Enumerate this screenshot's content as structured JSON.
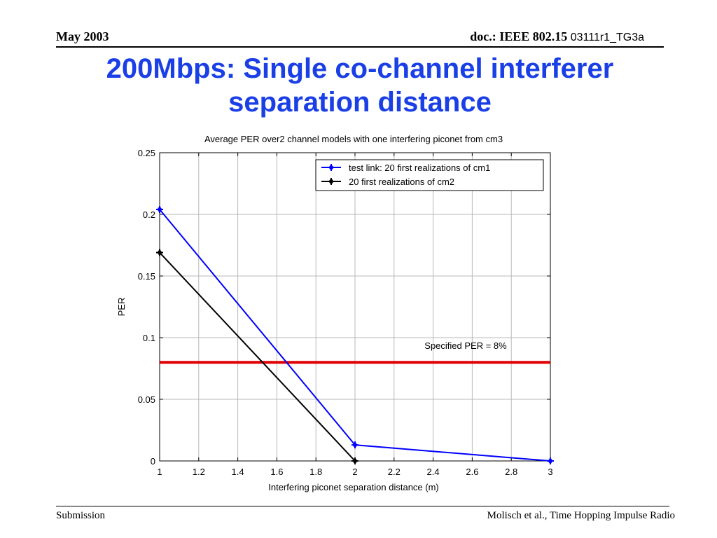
{
  "header": {
    "date": "May 2003",
    "doc_label": "doc.: IEEE 802.15",
    "doc_number": "03111r1_TG3a"
  },
  "slide": {
    "title_line1": "200Mbps: Single co-channel interferer",
    "title_line2": "separation distance"
  },
  "footer": {
    "left": "Submission",
    "right": "Molisch et al., Time  Hopping Impulse Radio"
  },
  "colors": {
    "title": "#1a3fe6",
    "series_blue": "#0000ff",
    "series_black": "#000000",
    "threshold": "#e00000"
  },
  "chart_data": {
    "type": "line",
    "title": "Average PER over2 channel models with one interfering piconet from cm3",
    "xlabel": "Interfering piconet separation distance (m)",
    "ylabel": "PER",
    "xlim": [
      1,
      3
    ],
    "ylim": [
      0,
      0.25
    ],
    "xticks": [
      "1",
      "1.2",
      "1.4",
      "1.6",
      "1.8",
      "2",
      "2.2",
      "2.4",
      "2.6",
      "2.8",
      "3"
    ],
    "yticks": [
      "0",
      "0.05",
      "0.1",
      "0.15",
      "0.2",
      "0.25"
    ],
    "grid": true,
    "legend_position": "top-right",
    "series": [
      {
        "name": "test link: 20 first realizations of cm1",
        "x": [
          1,
          2,
          3
        ],
        "y": [
          0.204,
          0.013,
          0.0
        ]
      },
      {
        "name": "20 first realizations of cm2",
        "x": [
          1,
          2
        ],
        "y": [
          0.169,
          0.0
        ]
      }
    ],
    "threshold": {
      "value": 0.08,
      "label": "Specified PER = 8%"
    }
  }
}
